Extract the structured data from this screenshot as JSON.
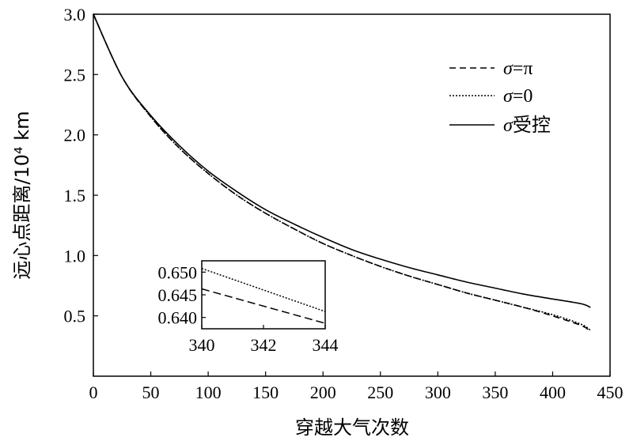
{
  "chart_data": {
    "type": "line",
    "xlabel": "穿越大气次数",
    "ylabel": "远心点距离/10⁴ km",
    "xlim": [
      0,
      450
    ],
    "ylim": [
      0,
      3.0
    ],
    "x_ticks": [
      "0",
      "50",
      "100",
      "150",
      "200",
      "250",
      "300",
      "350",
      "400",
      "450"
    ],
    "y_ticks": [
      "0.5",
      "1.0",
      "1.5",
      "2.0",
      "2.5",
      "3.0"
    ],
    "grid": false,
    "legend_position": "top-right",
    "series": [
      {
        "name": "σ=π",
        "style": "dashed",
        "x": [
          0,
          25,
          50,
          75,
          100,
          125,
          150,
          175,
          200,
          225,
          250,
          275,
          300,
          325,
          350,
          375,
          400,
          425,
          433
        ],
        "y": [
          3.0,
          2.48,
          2.15,
          1.89,
          1.68,
          1.5,
          1.35,
          1.22,
          1.1,
          1.0,
          0.91,
          0.83,
          0.76,
          0.69,
          0.63,
          0.57,
          0.5,
          0.42,
          0.37
        ]
      },
      {
        "name": "σ=0",
        "style": "dotted",
        "x": [
          0,
          25,
          50,
          75,
          100,
          125,
          150,
          175,
          200,
          225,
          250,
          275,
          300,
          325,
          350,
          375,
          400,
          425,
          433
        ],
        "y": [
          3.0,
          2.48,
          2.15,
          1.89,
          1.68,
          1.5,
          1.35,
          1.22,
          1.1,
          1.0,
          0.91,
          0.83,
          0.76,
          0.69,
          0.63,
          0.57,
          0.51,
          0.43,
          0.38
        ]
      },
      {
        "name": "σ受控",
        "style": "solid",
        "x": [
          0,
          25,
          50,
          75,
          100,
          125,
          150,
          175,
          200,
          225,
          250,
          275,
          300,
          325,
          350,
          375,
          400,
          425,
          433
        ],
        "y": [
          3.0,
          2.48,
          2.16,
          1.91,
          1.7,
          1.53,
          1.38,
          1.26,
          1.15,
          1.05,
          0.97,
          0.9,
          0.84,
          0.78,
          0.73,
          0.68,
          0.64,
          0.6,
          0.57
        ]
      }
    ],
    "inset": {
      "xlim": [
        340,
        344
      ],
      "ylim": [
        0.6375,
        0.6525
      ],
      "x_ticks": [
        "340",
        "342",
        "344"
      ],
      "y_ticks": [
        "0.640",
        "0.645",
        "0.650"
      ],
      "series": [
        {
          "name": "σ=π",
          "style": "dashed",
          "x": [
            340,
            344
          ],
          "y": [
            0.6463,
            0.6387
          ]
        },
        {
          "name": "σ=0",
          "style": "dotted",
          "x": [
            340,
            344
          ],
          "y": [
            0.6508,
            0.6413
          ]
        }
      ]
    }
  }
}
